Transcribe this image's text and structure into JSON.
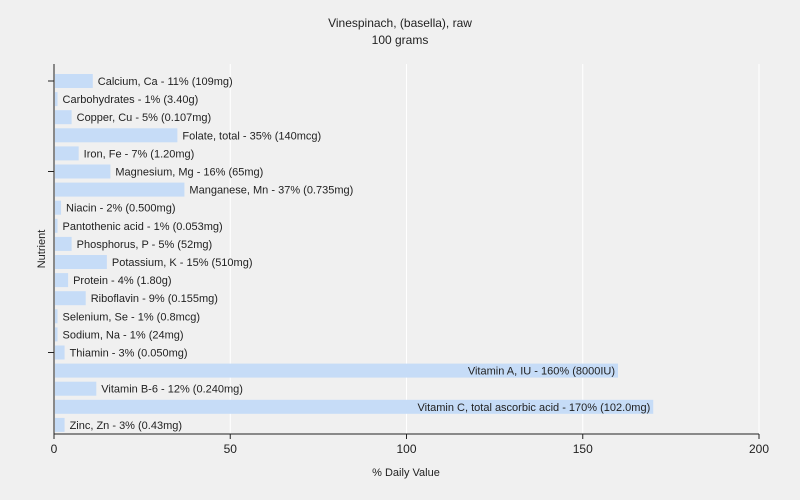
{
  "chart_data": {
    "type": "bar",
    "orientation": "horizontal",
    "title": "Vinespinach, (basella), raw",
    "subtitle": "100 grams",
    "xlabel": "% Daily Value",
    "ylabel": "Nutrient",
    "xlim": [
      0,
      200
    ],
    "xticks": [
      0,
      50,
      100,
      150,
      200
    ],
    "grid": true,
    "bar_color": "#c6dcf7",
    "gridline_color": "#ffffff",
    "categories": [
      "Calcium, Ca",
      "Carbohydrates",
      "Copper, Cu",
      "Folate, total",
      "Iron, Fe",
      "Magnesium, Mg",
      "Manganese, Mn",
      "Niacin",
      "Pantothenic acid",
      "Phosphorus, P",
      "Potassium, K",
      "Protein",
      "Riboflavin",
      "Selenium, Se",
      "Sodium, Na",
      "Thiamin",
      "Vitamin A, IU",
      "Vitamin B-6",
      "Vitamin C, total ascorbic acid",
      "Zinc, Zn"
    ],
    "values": [
      11,
      1,
      5,
      35,
      7,
      16,
      37,
      2,
      1,
      5,
      15,
      4,
      9,
      1,
      1,
      3,
      160,
      12,
      170,
      3
    ],
    "labels": [
      "Calcium, Ca - 11% (109mg)",
      "Carbohydrates - 1% (3.40g)",
      "Copper, Cu - 5% (0.107mg)",
      "Folate, total - 35% (140mcg)",
      "Iron, Fe - 7% (1.20mg)",
      "Magnesium, Mg - 16% (65mg)",
      "Manganese, Mn - 37% (0.735mg)",
      "Niacin - 2% (0.500mg)",
      "Pantothenic acid - 1% (0.053mg)",
      "Phosphorus, P - 5% (52mg)",
      "Potassium, K - 15% (510mg)",
      "Protein - 4% (1.80g)",
      "Riboflavin - 9% (0.155mg)",
      "Selenium, Se - 1% (0.8mcg)",
      "Sodium, Na - 1% (24mg)",
      "Thiamin - 3% (0.050mg)",
      "Vitamin A, IU - 160% (8000IU)",
      "Vitamin B-6 - 12% (0.240mg)",
      "Vitamin C, total ascorbic acid - 170% (102.0mg)",
      "Zinc, Zn - 3% (0.43mg)"
    ]
  }
}
